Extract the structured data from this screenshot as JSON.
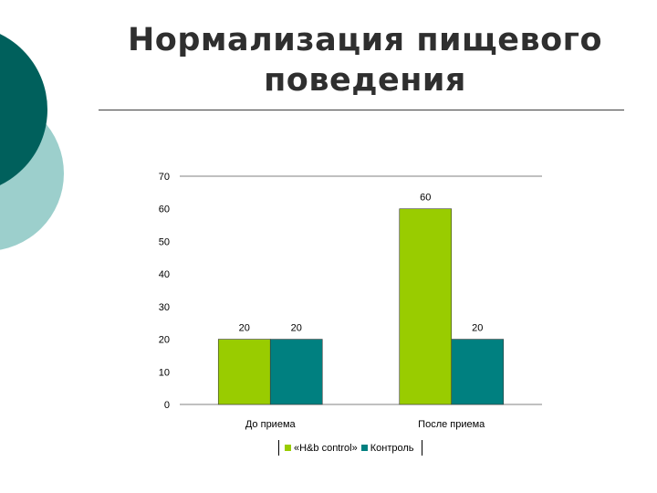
{
  "slide": {
    "title_line1": "Нормализация пищевого",
    "title_line2": "поведения",
    "accent_dark": "#00605c",
    "accent_light": "#9ccfcc"
  },
  "chart_data": {
    "type": "bar",
    "categories": [
      "До приема",
      "После приема"
    ],
    "series": [
      {
        "name": "«H&b control»",
        "values": [
          20,
          60
        ],
        "color": "#99cc00"
      },
      {
        "name": "Контроль",
        "values": [
          20,
          20
        ],
        "color": "#008080"
      }
    ],
    "ylim": [
      0,
      70
    ],
    "yticks": [
      0,
      10,
      20,
      30,
      40,
      50,
      60,
      70
    ],
    "grid": "top line only",
    "legend": "bottom",
    "data_labels": true
  }
}
